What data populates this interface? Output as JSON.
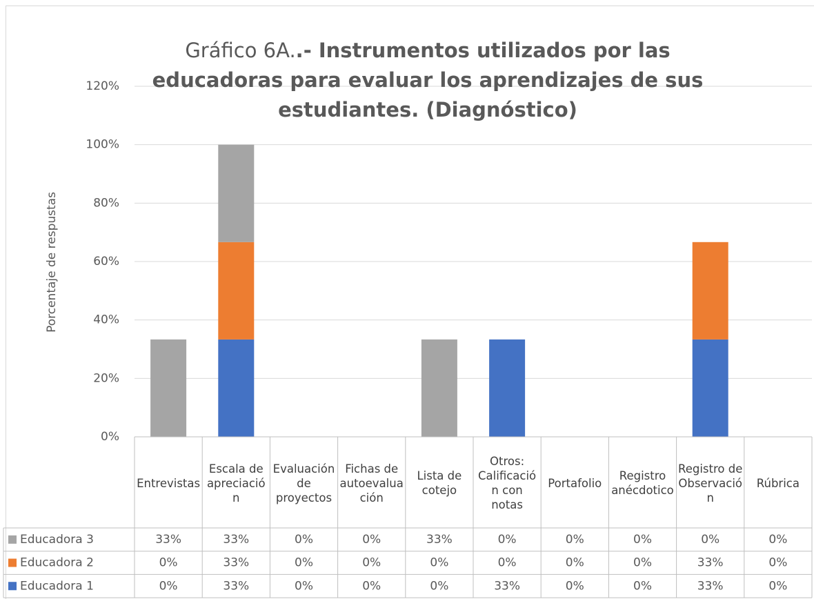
{
  "chart_data": {
    "type": "stacked_bar",
    "title": {
      "normal": "Gráfico 6A.",
      "bold": ".- Instrumentos utilizados por las educadoras para evaluar los aprendizajes de sus estudiantes. (Diagnóstico)"
    },
    "y_label": "Porcentaje de respustas",
    "categories": [
      "Entrevistas",
      "Escala de apreciación",
      "Evaluación de proyectos",
      "Fichas de autoevaluación",
      "Lista de cotejo",
      "Otros: Calificación con notas",
      "Portafolio",
      "Registro anécdotico",
      "Registro de Observación",
      "Rúbrica"
    ],
    "series": [
      {
        "name": "Educadora 1",
        "color": "#4472c4",
        "values": [
          0,
          33.33,
          0,
          0,
          0,
          33.33,
          0,
          0,
          33.33,
          0
        ],
        "value_labels": [
          "0%",
          "33%",
          "0%",
          "0%",
          "0%",
          "33%",
          "0%",
          "0%",
          "33%",
          "0%"
        ]
      },
      {
        "name": "Educadora 2",
        "color": "#ed7d31",
        "values": [
          0,
          33.33,
          0,
          0,
          0,
          0,
          0,
          0,
          33.33,
          0
        ],
        "value_labels": [
          "0%",
          "33%",
          "0%",
          "0%",
          "0%",
          "0%",
          "0%",
          "0%",
          "33%",
          "0%"
        ]
      },
      {
        "name": "Educadora 3",
        "color": "#a5a5a5",
        "values": [
          33.33,
          33.33,
          0,
          0,
          33.33,
          0,
          0,
          0,
          0,
          0
        ],
        "value_labels": [
          "33%",
          "33%",
          "0%",
          "0%",
          "33%",
          "0%",
          "0%",
          "0%",
          "0%",
          "0%"
        ]
      }
    ],
    "ylim": [
      0,
      120
    ],
    "yticks": [
      {
        "value": 0,
        "label": "0%"
      },
      {
        "value": 20,
        "label": "20%"
      },
      {
        "value": 40,
        "label": "40%"
      },
      {
        "value": 60,
        "label": "60%"
      },
      {
        "value": 80,
        "label": "80%"
      },
      {
        "value": 100,
        "label": "100%"
      },
      {
        "value": 120,
        "label": "120%"
      }
    ],
    "grid": true
  }
}
